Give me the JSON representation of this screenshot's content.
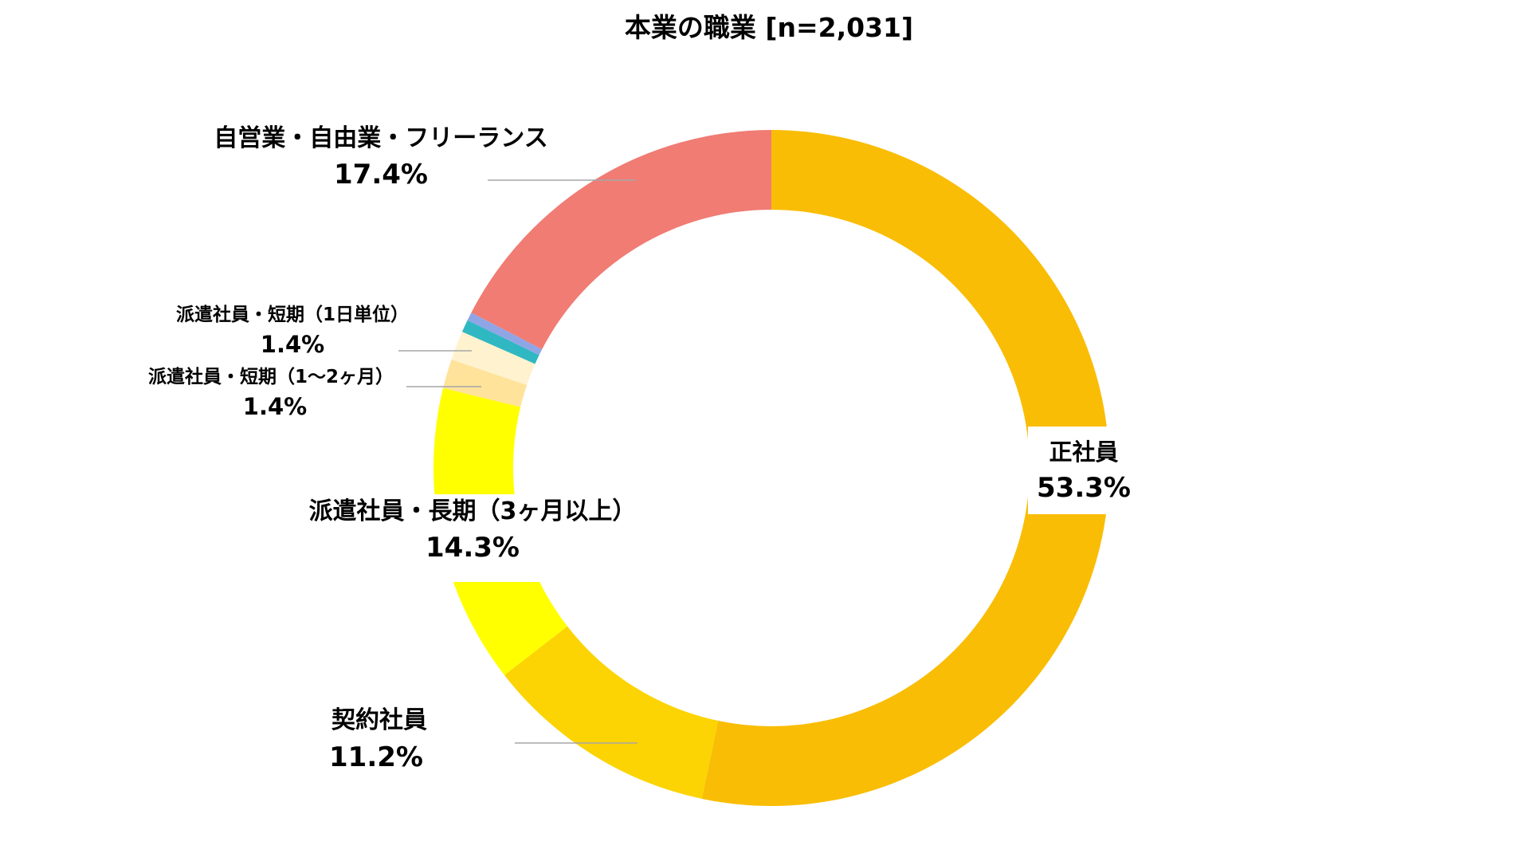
{
  "chart_data": {
    "type": "pie",
    "title": "本業の職業 [n=2,031]",
    "style": "donut",
    "start_angle_deg": 0,
    "direction": "clockwise",
    "slices": [
      {
        "label": "正社員",
        "value": 53.3,
        "value_label": "53.3%",
        "color": "#F9BD05"
      },
      {
        "label": "契約社員",
        "value": 11.2,
        "value_label": "11.2%",
        "color": "#FCD403"
      },
      {
        "label": "派遣社員・長期（3ヶ月以上）",
        "value": 14.3,
        "value_label": "14.3%",
        "color": "#FFFF00"
      },
      {
        "label": "派遣社員・短期（1～2ヶ月）",
        "value": 1.4,
        "value_label": "1.4%",
        "color": "#FFE39B"
      },
      {
        "label": "派遣社員・短期（1日単位）",
        "value": 1.4,
        "value_label": "1.4%",
        "color": "#FFF2CE"
      },
      {
        "label": "",
        "value": 0.6,
        "value_label": "",
        "color": "#2FB8C2"
      },
      {
        "label": "",
        "value": 0.4,
        "value_label": "",
        "color": "#8FA5E6"
      },
      {
        "label": "自営業・自由業・フリーランス",
        "value": 17.4,
        "value_label": "17.4%",
        "color": "#F07C74"
      }
    ]
  }
}
